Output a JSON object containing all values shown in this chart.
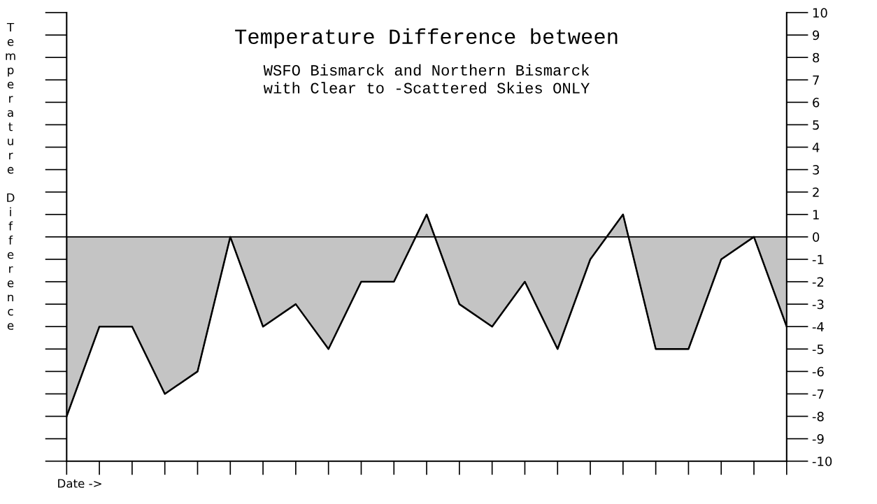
{
  "chart_data": {
    "type": "area",
    "title": "Temperature Difference between",
    "subtitle": "WSFO Bismarck and Northern Bismarck\nwith Clear to -Scattered Skies ONLY",
    "xlabel": "Date ->",
    "ylabel": "Temperature Difference",
    "categories": [
      null,
      null,
      null,
      null,
      null,
      null,
      null,
      null,
      null,
      null,
      null,
      null,
      null,
      null,
      null,
      null,
      null,
      null,
      null,
      null,
      null,
      null,
      null
    ],
    "series": [
      {
        "color": "#c4c4c4",
        "values": [
          -8,
          -4,
          -4,
          -7,
          -6,
          0,
          -4,
          -3,
          -5,
          -2,
          -2,
          1,
          -3,
          -4,
          -2,
          -5,
          -1,
          1,
          -5,
          -5,
          -1,
          0,
          -4
        ]
      }
    ],
    "ylim": [
      -10,
      10
    ],
    "yticks": [
      -10,
      -9,
      -8,
      -7,
      -6,
      -5,
      -4,
      -3,
      -2,
      -1,
      0,
      1,
      2,
      3,
      4,
      5,
      6,
      7,
      8,
      9,
      10
    ],
    "grid": false,
    "tick_labels": "y"
  }
}
